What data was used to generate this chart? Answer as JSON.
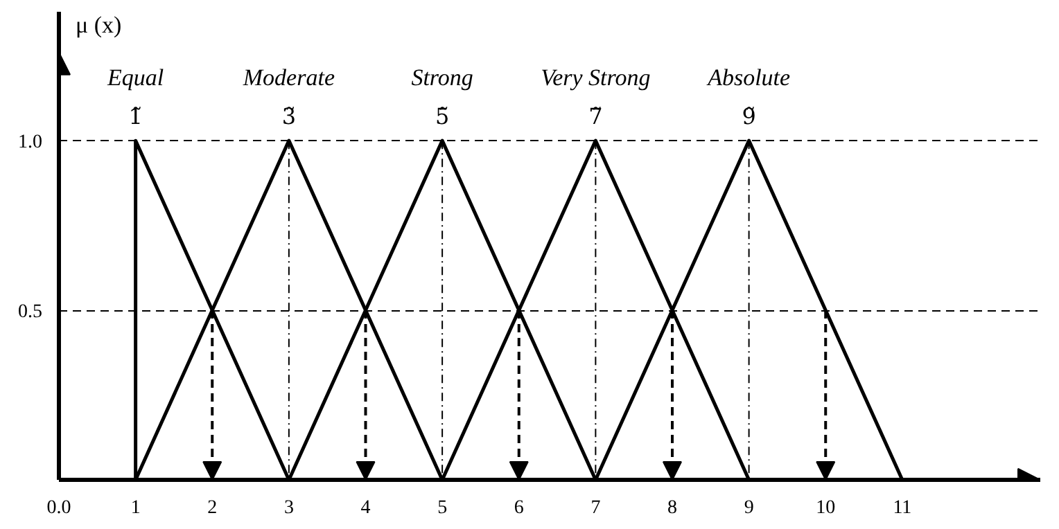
{
  "chart_data": {
    "type": "line",
    "ylabel": "μ (x)",
    "xlim": [
      0,
      12.8
    ],
    "ylim": [
      0,
      1.38
    ],
    "xticks": [
      {
        "value": 0,
        "label": "0.0"
      },
      1,
      2,
      3,
      4,
      5,
      6,
      7,
      8,
      9,
      10,
      11
    ],
    "yticks": [
      {
        "value": 0.5,
        "label": "0.5"
      },
      {
        "value": 1.0,
        "label": "1.0"
      }
    ],
    "line_style": "solid",
    "grid": true,
    "series": [
      {
        "name": "Equal",
        "color": "#000000",
        "x": [
          1,
          1,
          3
        ],
        "values": [
          0,
          1,
          0
        ]
      },
      {
        "name": "Moderate",
        "color": "#000000",
        "x": [
          1,
          3,
          5
        ],
        "values": [
          0,
          1,
          0
        ]
      },
      {
        "name": "Strong",
        "color": "#000000",
        "x": [
          3,
          5,
          7
        ],
        "values": [
          0,
          1,
          0
        ]
      },
      {
        "name": "Very Strong",
        "color": "#000000",
        "x": [
          5,
          7,
          9
        ],
        "values": [
          0,
          1,
          0
        ]
      },
      {
        "name": "Absolute",
        "color": "#000000",
        "x": [
          7,
          9,
          11
        ],
        "values": [
          0,
          1,
          0
        ]
      }
    ],
    "annotations": [
      {
        "text": "1̃",
        "x": 1,
        "y": 1
      },
      {
        "text": "3̃",
        "x": 3,
        "y": 1
      },
      {
        "text": "5̃",
        "x": 5,
        "y": 1
      },
      {
        "text": "7̃",
        "x": 7,
        "y": 1
      },
      {
        "text": "9̃",
        "x": 9,
        "y": 1
      }
    ]
  }
}
